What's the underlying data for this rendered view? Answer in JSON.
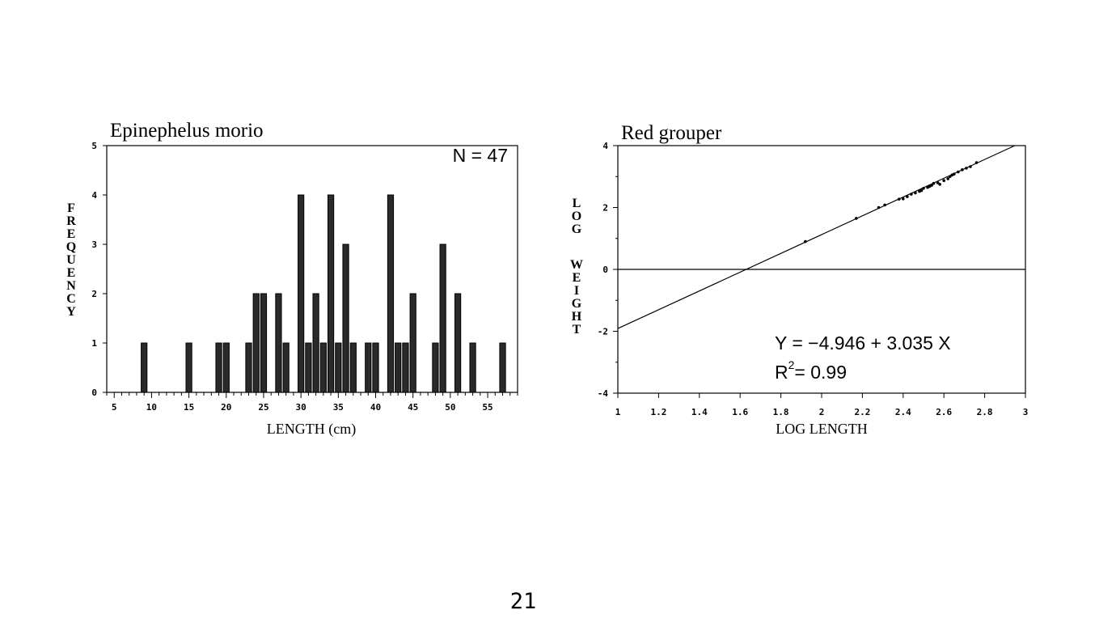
{
  "chart_data": [
    {
      "type": "bar",
      "title": "Epinephelus morio",
      "annotation": "N = 47",
      "xlabel": "LENGTH (cm)",
      "ylabel": "FREQUENCY",
      "xlim": [
        4,
        59
      ],
      "ylim": [
        0,
        5
      ],
      "xticks": [
        5,
        10,
        15,
        20,
        25,
        30,
        35,
        40,
        45,
        50,
        55
      ],
      "yticks": [
        0,
        1,
        2,
        3,
        4,
        5
      ],
      "grid": false,
      "x": [
        9,
        15,
        19,
        20,
        23,
        24,
        25,
        27,
        28,
        30,
        31,
        32,
        33,
        34,
        35,
        36,
        37,
        39,
        40,
        42,
        43,
        44,
        45,
        48,
        49,
        51,
        53,
        57
      ],
      "values": [
        1,
        1,
        1,
        1,
        1,
        2,
        2,
        2,
        1,
        4,
        1,
        2,
        1,
        4,
        1,
        3,
        1,
        1,
        1,
        4,
        1,
        1,
        2,
        1,
        3,
        2,
        1,
        1
      ],
      "colors": {
        "bar_fill": "#2a2a2a",
        "bar_edge": "#000000"
      }
    },
    {
      "type": "scatter",
      "title": "Red grouper",
      "xlabel": "LOG LENGTH",
      "ylabel": "LOG WEIGHT",
      "xlim": [
        1,
        3
      ],
      "ylim": [
        -4,
        4
      ],
      "xticks": [
        1,
        1.2,
        1.4,
        1.6,
        1.8,
        2,
        2.2,
        2.4,
        2.6,
        2.8,
        3
      ],
      "yticks": [
        -4,
        -2,
        0,
        2,
        4
      ],
      "grid": false,
      "equation": "Y = −4.946 + 3.035 X",
      "r2_label": "R",
      "r2_sup": "2",
      "r2_value": "= 0.99",
      "regression": {
        "intercept": -4.946,
        "slope": 3.035
      },
      "points": [
        [
          1.92,
          0.9
        ],
        [
          2.17,
          1.65
        ],
        [
          2.28,
          2.0
        ],
        [
          2.31,
          2.08
        ],
        [
          2.38,
          2.27
        ],
        [
          2.4,
          2.28
        ],
        [
          2.42,
          2.35
        ],
        [
          2.44,
          2.43
        ],
        [
          2.46,
          2.47
        ],
        [
          2.48,
          2.52
        ],
        [
          2.49,
          2.55
        ],
        [
          2.5,
          2.62
        ],
        [
          2.52,
          2.65
        ],
        [
          2.53,
          2.68
        ],
        [
          2.54,
          2.72
        ],
        [
          2.55,
          2.78
        ],
        [
          2.57,
          2.8
        ],
        [
          2.58,
          2.75
        ],
        [
          2.6,
          2.87
        ],
        [
          2.62,
          2.93
        ],
        [
          2.63,
          3.0
        ],
        [
          2.64,
          3.05
        ],
        [
          2.65,
          3.08
        ],
        [
          2.67,
          3.15
        ],
        [
          2.69,
          3.22
        ],
        [
          2.71,
          3.27
        ],
        [
          2.73,
          3.32
        ],
        [
          2.76,
          3.45
        ]
      ]
    }
  ],
  "page_number": "21"
}
